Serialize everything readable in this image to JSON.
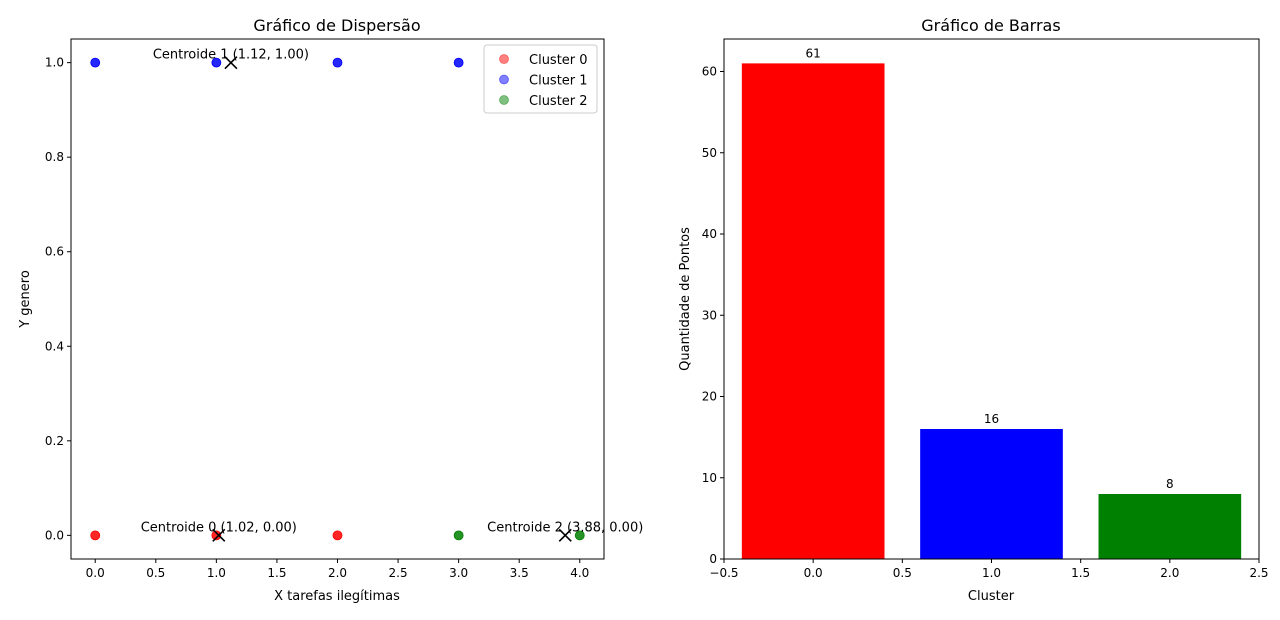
{
  "chart_data": [
    {
      "type": "scatter",
      "title": "Gráfico de Dispersão",
      "xlabel": "X tarefas ilegítimas",
      "ylabel": "Y genero",
      "xlim": [
        -0.2,
        4.2
      ],
      "ylim": [
        -0.05,
        1.05
      ],
      "xticks": [
        "0.0",
        "0.5",
        "1.0",
        "1.5",
        "2.0",
        "2.5",
        "3.0",
        "3.5",
        "4.0"
      ],
      "yticks": [
        "0.0",
        "0.2",
        "0.4",
        "0.6",
        "0.8",
        "1.0"
      ],
      "grid": false,
      "legend_position": "top-right",
      "series": [
        {
          "name": "Cluster 0",
          "color": "#ff0000",
          "points": [
            [
              0,
              0
            ],
            [
              1,
              0
            ],
            [
              2,
              0
            ]
          ]
        },
        {
          "name": "Cluster 1",
          "color": "#0000ff",
          "points": [
            [
              0,
              1
            ],
            [
              1,
              1
            ],
            [
              2,
              1
            ],
            [
              3,
              1
            ]
          ]
        },
        {
          "name": "Cluster 2",
          "color": "#008000",
          "points": [
            [
              3,
              0
            ],
            [
              4,
              0
            ]
          ]
        }
      ],
      "centroids": [
        {
          "x": 1.02,
          "y": 0.0,
          "label": "Centroide 0 (1.02, 0.00)"
        },
        {
          "x": 1.12,
          "y": 1.0,
          "label": "Centroide 1 (1.12, 1.00)"
        },
        {
          "x": 3.88,
          "y": 0.0,
          "label": "Centroide 2 (3.88, 0.00)"
        }
      ]
    },
    {
      "type": "bar",
      "title": "Gráfico de Barras",
      "xlabel": "Cluster",
      "ylabel": "Quantidade de Pontos",
      "xlim": [
        -0.5,
        2.5
      ],
      "ylim": [
        0,
        64
      ],
      "xticks": [
        "−0.5",
        "0.0",
        "0.5",
        "1.0",
        "1.5",
        "2.0",
        "2.5"
      ],
      "yticks": [
        "0",
        "10",
        "20",
        "30",
        "40",
        "50",
        "60"
      ],
      "grid": false,
      "categories": [
        0,
        1,
        2
      ],
      "values": [
        61,
        16,
        8
      ],
      "data_labels": [
        "61",
        "16",
        "8"
      ],
      "colors": [
        "#ff0000",
        "#0000ff",
        "#008000"
      ]
    }
  ]
}
